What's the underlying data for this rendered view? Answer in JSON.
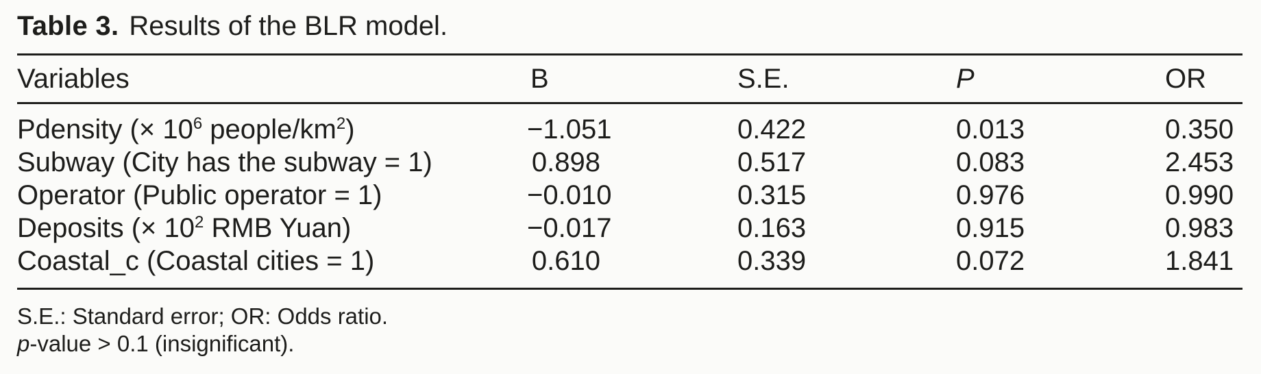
{
  "title": {
    "label": "Table 3.",
    "text": "Results of the BLR model."
  },
  "table": {
    "headers": [
      {
        "label": "Variables",
        "italic": false
      },
      {
        "label": "B",
        "italic": false
      },
      {
        "label": "S.E.",
        "italic": false
      },
      {
        "label": "P",
        "italic": true
      },
      {
        "label": "OR",
        "italic": false
      }
    ],
    "rows": [
      {
        "variable": [
          "Pdensity (× 10",
          {
            "sup": "6"
          },
          " people/km",
          {
            "sup": "2"
          },
          ")"
        ],
        "b": "−1.051",
        "se": "0.422",
        "p": "0.013",
        "or": "0.350"
      },
      {
        "variable": [
          "Subway (City has the subway = 1)"
        ],
        "b": "0.898",
        "se": "0.517",
        "p": "0.083",
        "or": "2.453"
      },
      {
        "variable": [
          "Operator (Public operator = 1)"
        ],
        "b": "−0.010",
        "se": "0.315",
        "p": "0.976",
        "or": "0.990"
      },
      {
        "variable": [
          "Deposits (× 10",
          {
            "sup": "2"
          },
          " RMB Yuan)"
        ],
        "b": "−0.017",
        "se": "0.163",
        "p": "0.915",
        "or": "0.983"
      },
      {
        "variable": [
          "Coastal_c (Coastal cities = 1)"
        ],
        "b": "0.610",
        "se": "0.339",
        "p": "0.072",
        "or": "1.841"
      }
    ]
  },
  "footnotes": [
    {
      "parts": [
        "S.E.: Standard error; OR: Odds ratio."
      ]
    },
    {
      "parts": [
        {
          "i": "p"
        },
        "-value > 0.1 (insignificant)."
      ]
    }
  ],
  "colors": {
    "background": "#fbfbf9",
    "text": "#1d1d1b",
    "rule": "#1d1d1b"
  }
}
